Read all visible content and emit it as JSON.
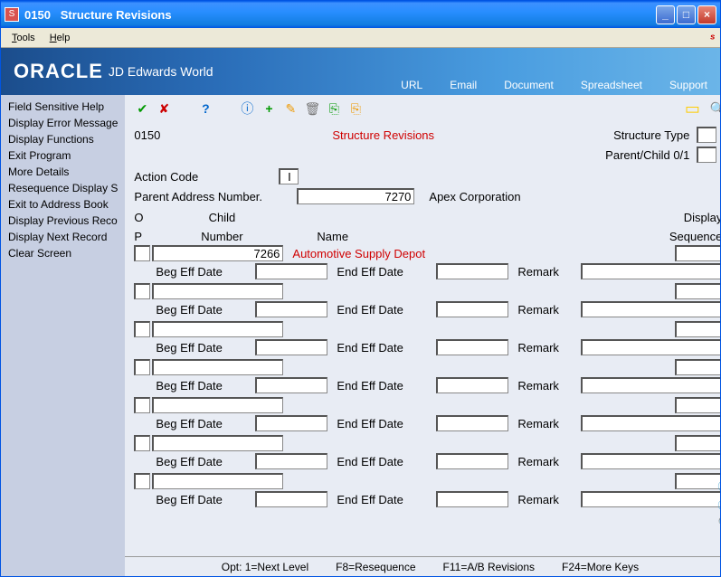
{
  "window": {
    "code": "0150",
    "title": "Structure Revisions"
  },
  "menubar": {
    "tools": "Tools",
    "help": "Help"
  },
  "brand": {
    "oracle": "ORACLE",
    "jd": "JD Edwards World",
    "links": [
      "URL",
      "Email",
      "Document",
      "Spreadsheet",
      "Support"
    ]
  },
  "sidebar": {
    "items": [
      "Field Sensitive Help",
      "Display Error Message",
      "Display Functions",
      "Exit Program",
      "More Details",
      "Resequence Display S",
      "Exit to Address Book",
      "Display Previous Reco",
      "Display Next Record",
      "Clear Screen"
    ]
  },
  "toolbar_icons": {
    "ok": "ok",
    "cancel": "cancel",
    "help": "help",
    "info": "info",
    "add": "add",
    "edit": "edit",
    "delete": "delete",
    "send": "send",
    "export": "export",
    "note": "note",
    "search": "search"
  },
  "header": {
    "code": "0150",
    "title": "Structure Revisions",
    "structure_type_lbl": "Structure Type",
    "structure_type_val": "",
    "parent_child_lbl": "Parent/Child 0/1",
    "parent_child_val": "",
    "action_code_lbl": "Action Code",
    "action_code_val": "I",
    "parent_addr_lbl": "Parent Address Number.",
    "parent_addr_val": "7270",
    "parent_name": "Apex Corporation"
  },
  "columns": {
    "op_top": "O",
    "op_bot": "P",
    "child_top": "Child",
    "child_bot": "Number",
    "name": "Name",
    "seq_top": "Display",
    "seq_bot": "Sequence"
  },
  "rows": [
    {
      "op": "",
      "child": "7266",
      "name": "Automotive Supply Depot",
      "seq": ""
    },
    {
      "op": "",
      "child": "",
      "name": "",
      "seq": ""
    },
    {
      "op": "",
      "child": "",
      "name": "",
      "seq": ""
    },
    {
      "op": "",
      "child": "",
      "name": "",
      "seq": ""
    },
    {
      "op": "",
      "child": "",
      "name": "",
      "seq": ""
    },
    {
      "op": "",
      "child": "",
      "name": "",
      "seq": ""
    },
    {
      "op": "",
      "child": "",
      "name": "",
      "seq": ""
    }
  ],
  "subrow": {
    "beg": "Beg Eff Date",
    "end": "End Eff Date",
    "remark": "Remark"
  },
  "footer": {
    "opt": "Opt: 1=Next Level",
    "f8": "F8=Resequence",
    "f11": "F11=A/B Revisions",
    "f24": "F24=More Keys"
  },
  "colors": {
    "title_red": "#d00000",
    "link_blue": "#ffffff"
  }
}
